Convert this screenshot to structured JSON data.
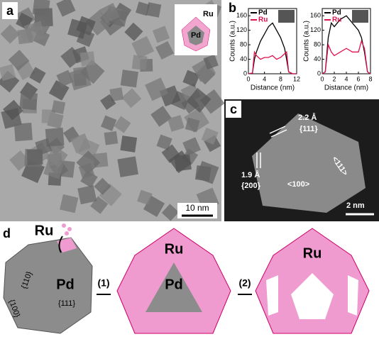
{
  "panels": {
    "a": {
      "letter": "a",
      "inset_top": "Ru",
      "inset_center": "Pd",
      "scale_bar": "10 nm"
    },
    "b": {
      "letter": "b"
    },
    "c": {
      "letter": "c",
      "spacing_1": "2.2 Å",
      "facet_1": "{111}",
      "spacing_2": "1.9 Å",
      "facet_2": "{200}",
      "direction_1": "<111>",
      "direction_2": "<100>",
      "scale_bar": "2 nm"
    },
    "d": {
      "letter": "d",
      "source": "Ru",
      "core": "Pd",
      "facet_110": "{110}",
      "facet_100": "{100}",
      "facet_111": "{111}",
      "step_1": "(1)",
      "step_2": "(2)",
      "shell_1": "Ru",
      "core_1": "Pd",
      "shell_2": "Ru"
    }
  },
  "chart_data": [
    {
      "type": "line",
      "xlabel": "Distance (nm)",
      "ylabel": "Counts (a.u.)",
      "x": [
        0,
        1,
        1.5,
        2,
        3,
        4,
        5,
        6,
        7,
        8,
        9,
        9.5,
        10,
        11,
        12
      ],
      "series": [
        {
          "name": "Pd",
          "color": "#000000",
          "values": [
            0,
            2,
            40,
            60,
            90,
            110,
            130,
            140,
            120,
            100,
            70,
            40,
            5,
            0,
            0
          ]
        },
        {
          "name": "Ru",
          "color": "#e0114f",
          "values": [
            0,
            2,
            60,
            50,
            40,
            45,
            45,
            50,
            40,
            45,
            55,
            60,
            5,
            0,
            0
          ]
        }
      ],
      "xlim": [
        0,
        12
      ],
      "xticks": [
        0,
        4,
        8,
        12
      ],
      "ylim": [
        0,
        180
      ],
      "yticks": [
        0,
        40,
        80,
        120,
        160
      ],
      "legend": "top-left"
    },
    {
      "type": "line",
      "xlabel": "Distance (nm)",
      "ylabel": "Counts (a.u.)",
      "x": [
        0,
        0.5,
        1,
        1.5,
        2,
        3,
        4,
        5,
        6,
        6.5,
        7,
        7.5,
        8
      ],
      "series": [
        {
          "name": "Pd",
          "color": "#000000",
          "values": [
            0,
            5,
            100,
            140,
            130,
            150,
            160,
            140,
            120,
            100,
            60,
            5,
            0
          ]
        },
        {
          "name": "Ru",
          "color": "#e0114f",
          "values": [
            0,
            5,
            80,
            60,
            50,
            60,
            70,
            60,
            60,
            90,
            70,
            5,
            0
          ]
        }
      ],
      "xlim": [
        0,
        8
      ],
      "xticks": [
        0,
        2,
        4,
        6,
        8
      ],
      "ylim": [
        0,
        180
      ],
      "yticks": [
        0,
        40,
        80,
        120,
        160
      ],
      "legend": "top-left"
    }
  ]
}
